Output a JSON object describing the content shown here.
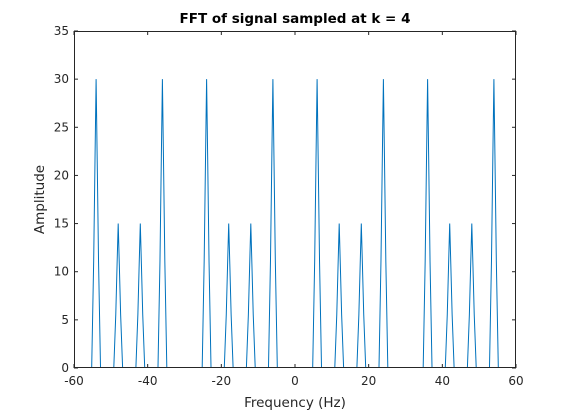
{
  "chart_data": {
    "type": "line",
    "title": "FFT of signal sampled at k = 4",
    "xlabel": "Frequency (Hz)",
    "ylabel": "Amplitude",
    "xlim": [
      -60,
      60
    ],
    "ylim": [
      0,
      35
    ],
    "xticks": [
      "-60",
      "-40",
      "-20",
      "0",
      "20",
      "40",
      "60"
    ],
    "yticks": [
      "0",
      "5",
      "10",
      "15",
      "20",
      "25",
      "30",
      "35"
    ],
    "grid": false,
    "line_color": "#0072BD",
    "peak_half_width_hz": 1.2,
    "peaks": [
      {
        "freq": -54,
        "amplitude": 30
      },
      {
        "freq": -48,
        "amplitude": 15
      },
      {
        "freq": -42,
        "amplitude": 15
      },
      {
        "freq": -36,
        "amplitude": 30
      },
      {
        "freq": -24,
        "amplitude": 30
      },
      {
        "freq": -18,
        "amplitude": 15
      },
      {
        "freq": -12,
        "amplitude": 15
      },
      {
        "freq": -6,
        "amplitude": 30
      },
      {
        "freq": 6,
        "amplitude": 30
      },
      {
        "freq": 12,
        "amplitude": 15
      },
      {
        "freq": 18,
        "amplitude": 15
      },
      {
        "freq": 24,
        "amplitude": 30
      },
      {
        "freq": 36,
        "amplitude": 30
      },
      {
        "freq": 42,
        "amplitude": 15
      },
      {
        "freq": 48,
        "amplitude": 15
      },
      {
        "freq": 54,
        "amplitude": 30
      }
    ]
  }
}
